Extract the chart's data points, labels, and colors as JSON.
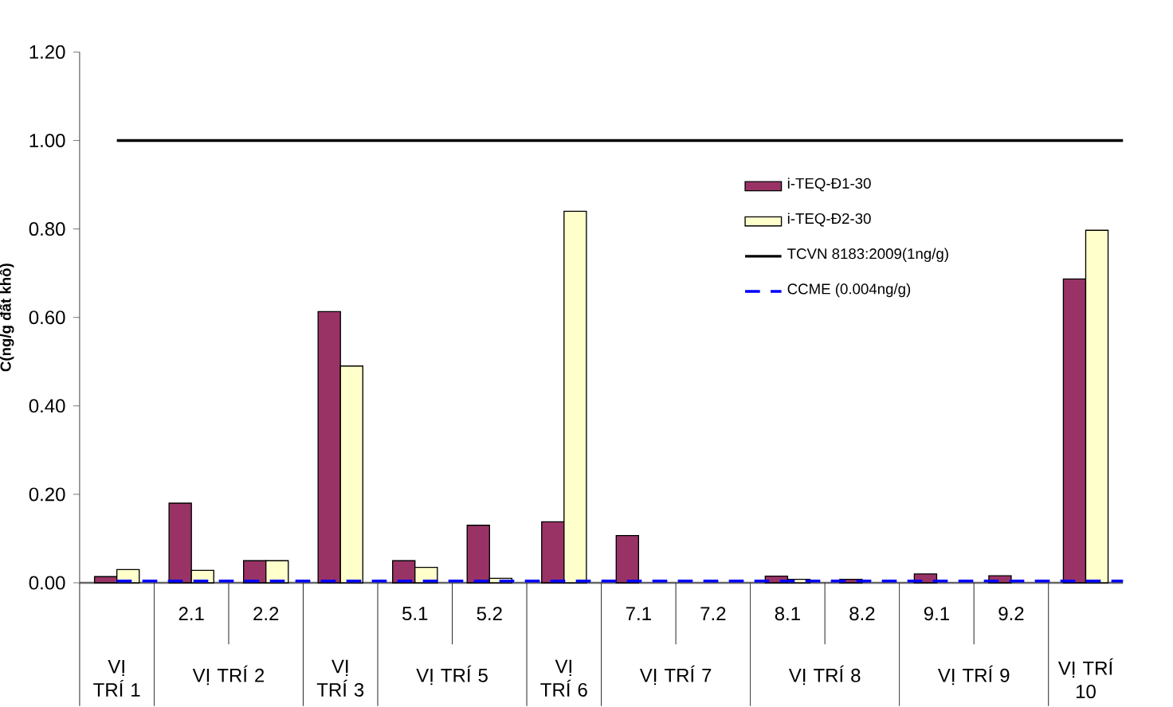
{
  "chart_data": {
    "type": "bar",
    "ylabel": "C(ng/g đất khô)",
    "categories": [
      null,
      "2.1",
      "2.2",
      null,
      "5.1",
      "5.2",
      null,
      "7.1",
      "7.2",
      "8.1",
      "8.2",
      "9.1",
      "9.2",
      null
    ],
    "annotations": [
      "VỊ TRÍ 1",
      "VỊ TRÍ 2",
      "VỊ TRÍ 3",
      "VỊ TRÍ 5",
      "VỊ TRÍ 6",
      "VỊ TRÍ 7",
      "VỊ TRÍ 8",
      "VỊ TRÍ 9",
      "VỊ TRÍ 10"
    ],
    "series": [
      {
        "name": "i-TEQ-Đ1-30",
        "color": "#993366",
        "values": [
          0.014,
          0.18,
          0.05,
          0.613,
          0.05,
          0.13,
          0.138,
          0.107,
          null,
          0.015,
          0.008,
          0.02,
          0.016,
          0.687
        ]
      },
      {
        "name": "i-TEQ-Đ2-30",
        "color": "#ffffcc",
        "values": [
          0.03,
          0.028,
          0.05,
          0.49,
          0.035,
          0.01,
          0.84,
          null,
          null,
          0.008,
          null,
          null,
          null,
          0.797
        ]
      }
    ],
    "ref_lines": [
      {
        "axis": "y",
        "value": 1.0,
        "label": "TCVN 8183:2009(1ng/g)",
        "color": "#000000",
        "line_style": "solid"
      },
      {
        "axis": "y",
        "value": 0.004,
        "label": "CCME (0.004ng/g)",
        "color": "#0000ff",
        "line_style": "dashed"
      }
    ],
    "ylim": [
      0,
      1.2
    ],
    "yticks": [
      {
        "value": 0,
        "label": "0.00"
      },
      {
        "value": 0.2,
        "label": "0.20"
      },
      {
        "value": 0.4,
        "label": "0.40"
      },
      {
        "value": 0.6,
        "label": "0.60"
      },
      {
        "value": 0.8,
        "label": "0.80"
      },
      {
        "value": 1.0,
        "label": "1.00"
      },
      {
        "value": 1.2,
        "label": "1.20"
      }
    ],
    "grid": false,
    "legend": "top right"
  }
}
